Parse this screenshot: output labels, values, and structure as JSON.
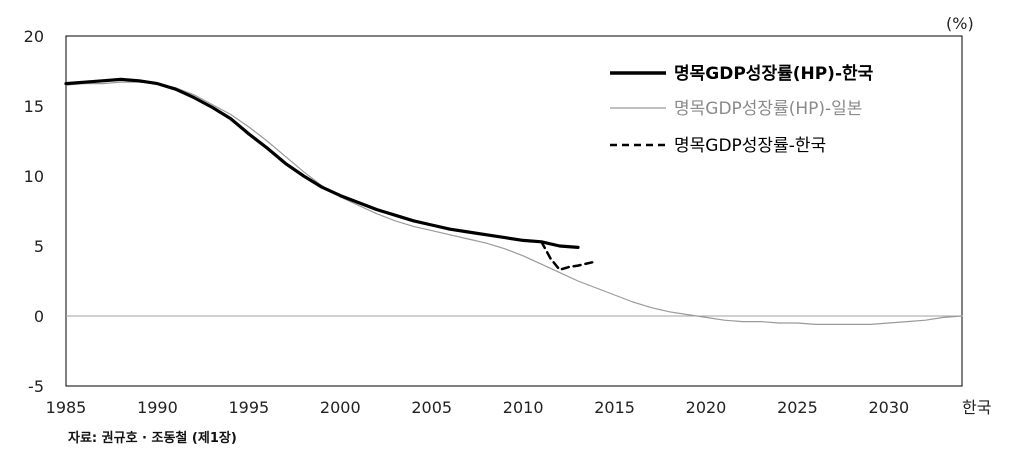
{
  "chart_data": {
    "type": "line",
    "unit_label": "(%)",
    "source": "자료: 권규호 · 조동철 (제1장)",
    "x_end_label": "한국",
    "xlim": [
      1985,
      2034
    ],
    "ylim": [
      -5,
      20
    ],
    "x_ticks": [
      1985,
      1990,
      1995,
      2000,
      2005,
      2010,
      2015,
      2020,
      2025,
      2030
    ],
    "y_ticks": [
      20,
      15,
      10,
      5,
      0,
      -5
    ],
    "zero_line": true,
    "legend_position": "top-right",
    "series": [
      {
        "name": "명목GDP성장률(HP)-한국",
        "color": "#000000",
        "style": "solid-thick",
        "points": [
          [
            1985,
            16.6
          ],
          [
            1986,
            16.7
          ],
          [
            1987,
            16.8
          ],
          [
            1988,
            16.9
          ],
          [
            1989,
            16.8
          ],
          [
            1990,
            16.6
          ],
          [
            1991,
            16.2
          ],
          [
            1992,
            15.6
          ],
          [
            1993,
            14.9
          ],
          [
            1994,
            14.1
          ],
          [
            1995,
            13.0
          ],
          [
            1996,
            12.0
          ],
          [
            1997,
            10.9
          ],
          [
            1998,
            10.0
          ],
          [
            1999,
            9.2
          ],
          [
            2000,
            8.6
          ],
          [
            2001,
            8.1
          ],
          [
            2002,
            7.6
          ],
          [
            2003,
            7.2
          ],
          [
            2004,
            6.8
          ],
          [
            2005,
            6.5
          ],
          [
            2006,
            6.2
          ],
          [
            2007,
            6.0
          ],
          [
            2008,
            5.8
          ],
          [
            2009,
            5.6
          ],
          [
            2010,
            5.4
          ],
          [
            2011,
            5.3
          ],
          [
            2012,
            5.0
          ],
          [
            2013,
            4.9
          ]
        ]
      },
      {
        "name": "명목GDP성장률(HP)-일본",
        "color": "#9a9a9a",
        "style": "solid-thin",
        "points": [
          [
            1985,
            16.5
          ],
          [
            1986,
            16.6
          ],
          [
            1987,
            16.6
          ],
          [
            1988,
            16.7
          ],
          [
            1989,
            16.7
          ],
          [
            1990,
            16.6
          ],
          [
            1991,
            16.3
          ],
          [
            1992,
            15.8
          ],
          [
            1993,
            15.1
          ],
          [
            1994,
            14.4
          ],
          [
            1995,
            13.5
          ],
          [
            1996,
            12.5
          ],
          [
            1997,
            11.4
          ],
          [
            1998,
            10.3
          ],
          [
            1999,
            9.3
          ],
          [
            2000,
            8.5
          ],
          [
            2001,
            7.9
          ],
          [
            2002,
            7.3
          ],
          [
            2003,
            6.8
          ],
          [
            2004,
            6.4
          ],
          [
            2005,
            6.1
          ],
          [
            2006,
            5.8
          ],
          [
            2007,
            5.5
          ],
          [
            2008,
            5.2
          ],
          [
            2009,
            4.8
          ],
          [
            2010,
            4.3
          ],
          [
            2011,
            3.7
          ],
          [
            2012,
            3.1
          ],
          [
            2013,
            2.5
          ],
          [
            2014,
            2.0
          ],
          [
            2015,
            1.5
          ],
          [
            2016,
            1.0
          ],
          [
            2017,
            0.6
          ],
          [
            2018,
            0.3
          ],
          [
            2019,
            0.1
          ],
          [
            2020,
            -0.1
          ],
          [
            2021,
            -0.3
          ],
          [
            2022,
            -0.4
          ],
          [
            2023,
            -0.4
          ],
          [
            2024,
            -0.5
          ],
          [
            2025,
            -0.5
          ],
          [
            2026,
            -0.6
          ],
          [
            2027,
            -0.6
          ],
          [
            2028,
            -0.6
          ],
          [
            2029,
            -0.6
          ],
          [
            2030,
            -0.5
          ],
          [
            2031,
            -0.4
          ],
          [
            2032,
            -0.3
          ],
          [
            2033,
            -0.1
          ],
          [
            2034,
            0.0
          ]
        ]
      },
      {
        "name": "명목GDP성장률-한국",
        "color": "#000000",
        "style": "dashed",
        "points": [
          [
            2011,
            5.3
          ],
          [
            2011.5,
            4.1
          ],
          [
            2012,
            3.3
          ],
          [
            2012.5,
            3.5
          ],
          [
            2013,
            3.6
          ],
          [
            2014,
            3.9
          ]
        ]
      }
    ]
  }
}
